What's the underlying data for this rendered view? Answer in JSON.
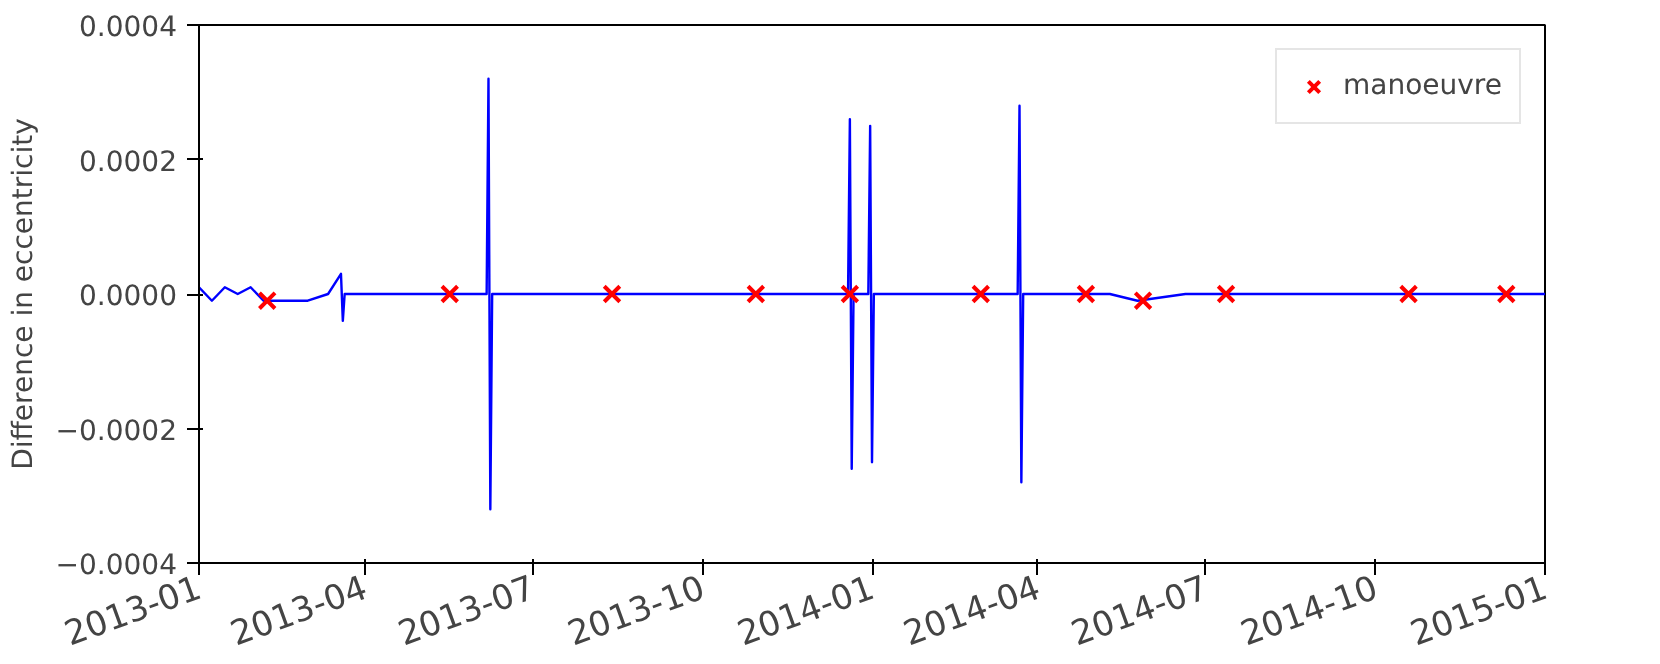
{
  "chart_data": {
    "type": "line",
    "ylabel": "Difference in eccentricity",
    "xlim": [
      "2013-01-01",
      "2015-01-01"
    ],
    "xticks": [
      "2013-01",
      "2013-04",
      "2013-07",
      "2013-10",
      "2014-01",
      "2014-04",
      "2014-07",
      "2014-10",
      "2015-01"
    ],
    "ylim": [
      -0.0004,
      0.0004
    ],
    "yticks": [
      {
        "value": -0.0004,
        "label": "−0.0004"
      },
      {
        "value": -0.0002,
        "label": "−0.0002"
      },
      {
        "value": 0,
        "label": "0.0000"
      },
      {
        "value": 0.0002,
        "label": "0.0002"
      },
      {
        "value": 0.0004,
        "label": "0.0004"
      }
    ],
    "grid": false,
    "legend": "top right",
    "series": [
      {
        "color": "#0000ff",
        "marker": "none",
        "line_style": "solid",
        "x": [
          "2013-01-01",
          "2013-01-08",
          "2013-01-15",
          "2013-01-22",
          "2013-01-29",
          "2013-02-05",
          "2013-02-12",
          "2013-02-19",
          "2013-03-01",
          "2013-03-12",
          "2013-03-19",
          "2013-03-20",
          "2013-03-21",
          "2013-04-10",
          "2013-05-01",
          "2013-05-20",
          "2013-06-06",
          "2013-06-07",
          "2013-06-08",
          "2013-06-09",
          "2013-07-01",
          "2013-07-20",
          "2013-08-15",
          "2013-09-10",
          "2013-10-01",
          "2013-10-30",
          "2013-11-25",
          "2013-12-19",
          "2013-12-20",
          "2013-12-21",
          "2013-12-22",
          "2013-12-30",
          "2013-12-31",
          "2014-01-01",
          "2014-01-02",
          "2014-01-20",
          "2014-02-10",
          "2014-03-01",
          "2014-03-21",
          "2014-03-22",
          "2014-03-23",
          "2014-03-24",
          "2014-04-15",
          "2014-05-10",
          "2014-05-25",
          "2014-06-20",
          "2014-07-15",
          "2014-08-20",
          "2014-09-20",
          "2014-10-20",
          "2014-11-20",
          "2014-12-15",
          "2015-01-01"
        ],
        "values": [
          1e-05,
          -1e-05,
          1e-05,
          0.0,
          1e-05,
          -1e-05,
          -1e-05,
          -1e-05,
          -1e-05,
          0.0,
          3e-05,
          -4e-05,
          0.0,
          0.0,
          0.0,
          0.0,
          0.0,
          0.00032,
          -0.00032,
          0.0,
          0.0,
          0.0,
          0.0,
          0.0,
          0.0,
          0.0,
          0.0,
          0.0,
          0.00026,
          -0.00026,
          0.0,
          0.0,
          0.00025,
          -0.00025,
          0.0,
          0.0,
          0.0,
          0.0,
          0.0,
          0.00028,
          -0.00028,
          0.0,
          0.0,
          0.0,
          -1e-05,
          0.0,
          0.0,
          0.0,
          0.0,
          0.0,
          0.0,
          0.0,
          0.0
        ]
      },
      {
        "type": "scatter",
        "name": "manoeuvre",
        "color": "#ff0000",
        "marker": "cross",
        "x": [
          "2013-02-07",
          "2013-05-17",
          "2013-08-13",
          "2013-10-30",
          "2013-12-20",
          "2014-03-01",
          "2014-04-27",
          "2014-05-28",
          "2014-07-12",
          "2014-10-19",
          "2014-12-11"
        ],
        "values": [
          -1e-05,
          0.0,
          0.0,
          0.0,
          0.0,
          0.0,
          0.0,
          -1e-05,
          0.0,
          0.0,
          0.0
        ]
      }
    ]
  }
}
